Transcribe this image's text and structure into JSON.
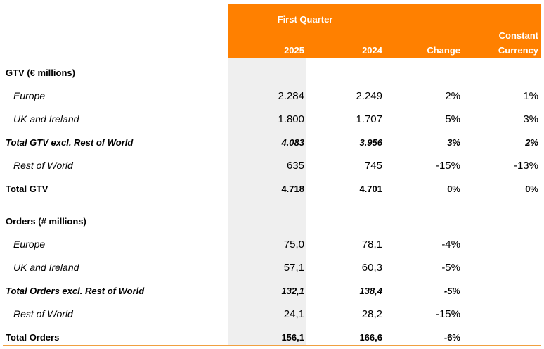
{
  "header": {
    "period": "First Quarter",
    "col_2025": "2025",
    "col_2024": "2024",
    "col_change": "Change",
    "col_constant_line1": "Constant",
    "col_constant_line2": "Currency"
  },
  "colors": {
    "header_bg": "#ff8000",
    "header_text": "#ffffff",
    "highlight_column": "#efefef",
    "rule": "#f0a040"
  },
  "gtv": {
    "section_label": "GTV (€ millions)",
    "rows": [
      {
        "label": "Europe",
        "y2025": "2.284",
        "y2024": "2.249",
        "change": "2%",
        "constant": "1%"
      },
      {
        "label": "UK and Ireland",
        "y2025": "1.800",
        "y2024": "1.707",
        "change": "5%",
        "constant": "3%"
      },
      {
        "label": "Total GTV excl. Rest of World",
        "y2025": "4.083",
        "y2024": "3.956",
        "change": "3%",
        "constant": "2%"
      },
      {
        "label": "Rest of World",
        "y2025": "635",
        "y2024": "745",
        "change": "-15%",
        "constant": "-13%"
      },
      {
        "label": "Total GTV",
        "y2025": "4.718",
        "y2024": "4.701",
        "change": "0%",
        "constant": "0%"
      }
    ]
  },
  "orders": {
    "section_label": "Orders (# millions)",
    "rows": [
      {
        "label": "Europe",
        "y2025": "75,0",
        "y2024": "78,1",
        "change": "-4%"
      },
      {
        "label": "UK and Ireland",
        "y2025": "57,1",
        "y2024": "60,3",
        "change": "-5%"
      },
      {
        "label": "Total Orders excl. Rest of World",
        "y2025": "132,1",
        "y2024": "138,4",
        "change": "-5%"
      },
      {
        "label": "Rest of World",
        "y2025": "24,1",
        "y2024": "28,2",
        "change": "-15%"
      },
      {
        "label": "Total Orders",
        "y2025": "156,1",
        "y2024": "166,6",
        "change": "-6%"
      }
    ]
  }
}
